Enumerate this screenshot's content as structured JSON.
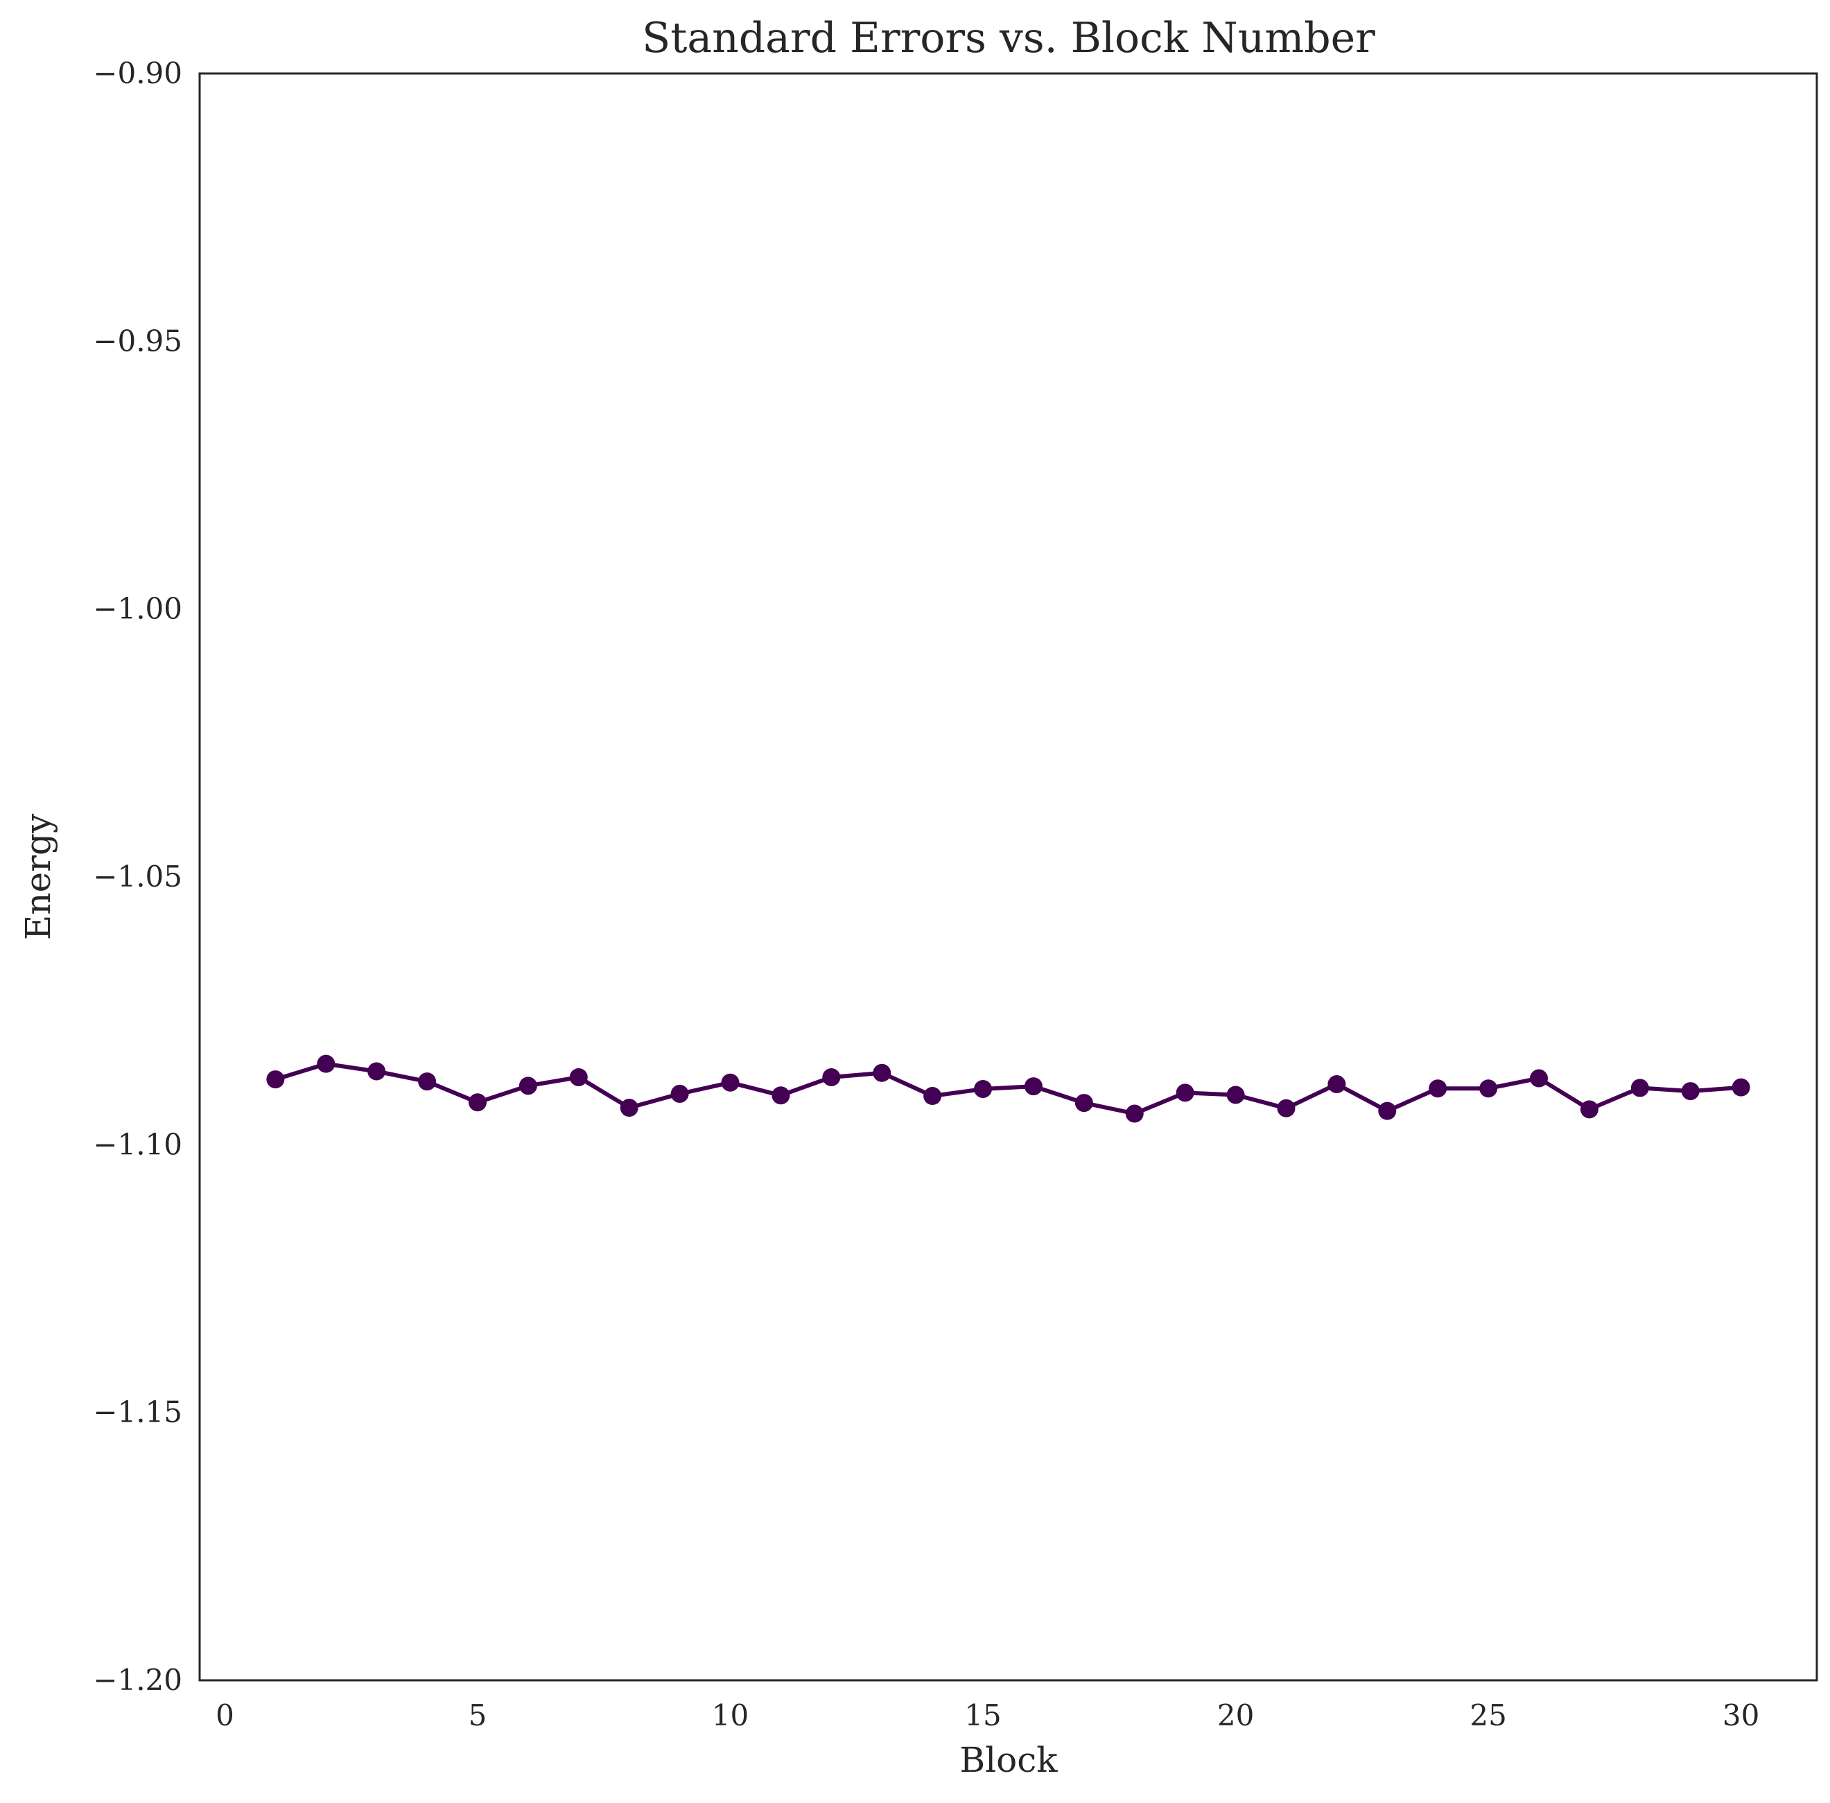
{
  "chart_data": {
    "type": "line",
    "title": "Standard Errors vs. Block Number",
    "xlabel": "Block",
    "ylabel": "Energy",
    "xlim": [
      -0.5,
      31.5
    ],
    "ylim": [
      -1.2,
      -0.9
    ],
    "xticks": [
      0,
      5,
      10,
      15,
      20,
      25,
      30
    ],
    "xtick_labels": [
      "0",
      "5",
      "10",
      "15",
      "20",
      "25",
      "30"
    ],
    "yticks": [
      -0.9,
      -0.95,
      -1.0,
      -1.05,
      -1.1,
      -1.15,
      -1.2
    ],
    "ytick_labels": [
      "−0.90",
      "−0.95",
      "−1.00",
      "−1.05",
      "−1.10",
      "−1.15",
      "−1.20"
    ],
    "grid": false,
    "legend": "none",
    "color": "#440154",
    "marker": "circle",
    "x": [
      1,
      2,
      3,
      4,
      5,
      6,
      7,
      8,
      9,
      10,
      11,
      12,
      13,
      14,
      15,
      16,
      17,
      18,
      19,
      20,
      21,
      22,
      23,
      24,
      25,
      26,
      27,
      28,
      29,
      30
    ],
    "y": [
      -1.0878,
      -1.0849,
      -1.0863,
      -1.0882,
      -1.0921,
      -1.089,
      -1.0874,
      -1.0931,
      -1.0905,
      -1.0884,
      -1.0908,
      -1.0874,
      -1.0866,
      -1.0909,
      -1.0896,
      -1.0891,
      -1.0922,
      -1.0942,
      -1.0903,
      -1.0907,
      -1.0932,
      -1.0887,
      -1.0937,
      -1.0895,
      -1.0895,
      -1.0876,
      -1.0934,
      -1.0894,
      -1.09,
      -1.0893
    ]
  }
}
